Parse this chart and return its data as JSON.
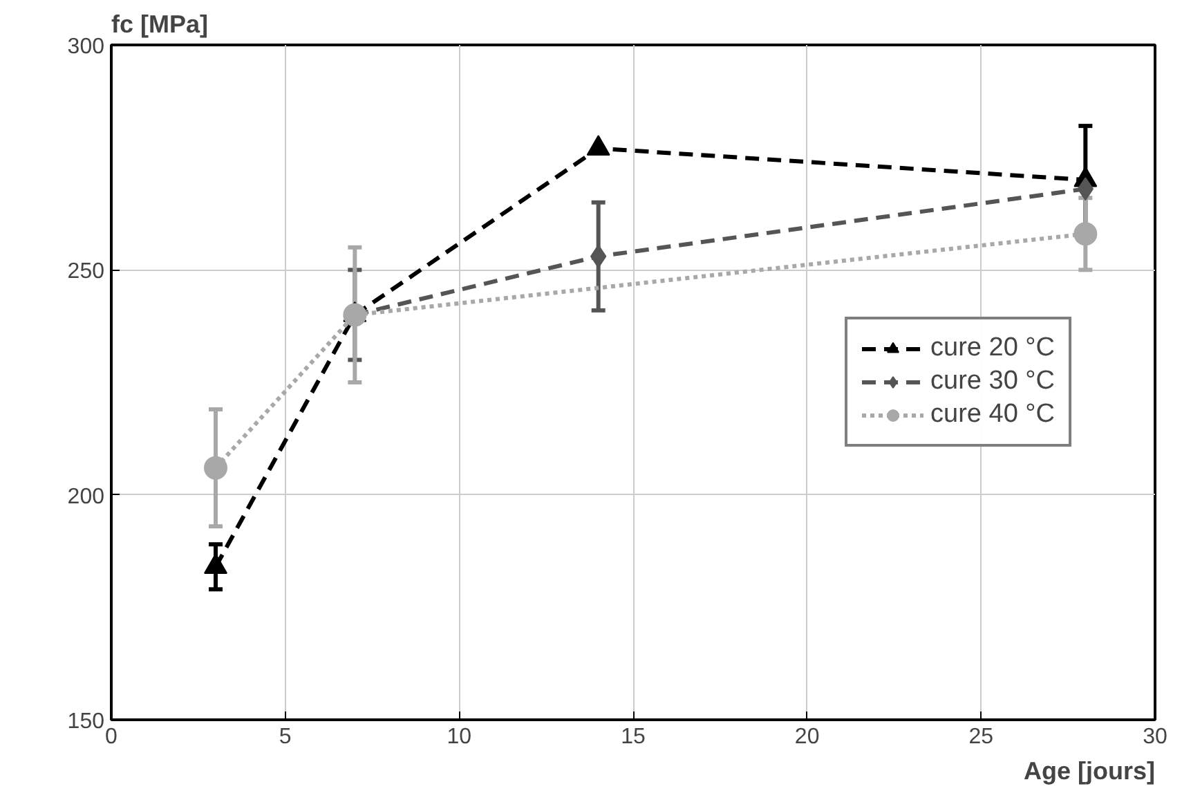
{
  "chart_data": {
    "type": "line",
    "xlabel": "Age [jours]",
    "ylabel": "fc [MPa]",
    "xlim": [
      0,
      30
    ],
    "ylim": [
      150,
      300
    ],
    "xticks": [
      0,
      5,
      10,
      15,
      20,
      25,
      30
    ],
    "yticks": [
      150,
      200,
      250,
      300
    ],
    "grid": true,
    "legend": "right",
    "series": [
      {
        "name": "cure 20 °C",
        "color": "#000000",
        "x": [
          3,
          7,
          14,
          28
        ],
        "values": [
          184,
          240,
          277,
          270
        ],
        "errors": [
          5,
          null,
          null,
          12
        ],
        "marker": "triangle",
        "line_style": "dashed"
      },
      {
        "name": "cure 30 °C",
        "color": "#555555",
        "x": [
          7,
          14,
          28
        ],
        "values": [
          240,
          253,
          268
        ],
        "errors": [
          10,
          12,
          null
        ],
        "marker": "diamond",
        "line_style": "dashed"
      },
      {
        "name": "cure 40 °C",
        "color": "#a8a8a8",
        "x": [
          3,
          7,
          28
        ],
        "values": [
          206,
          240,
          258
        ],
        "errors": [
          13,
          15,
          8
        ],
        "marker": "circle",
        "line_style": "dotted"
      }
    ]
  }
}
